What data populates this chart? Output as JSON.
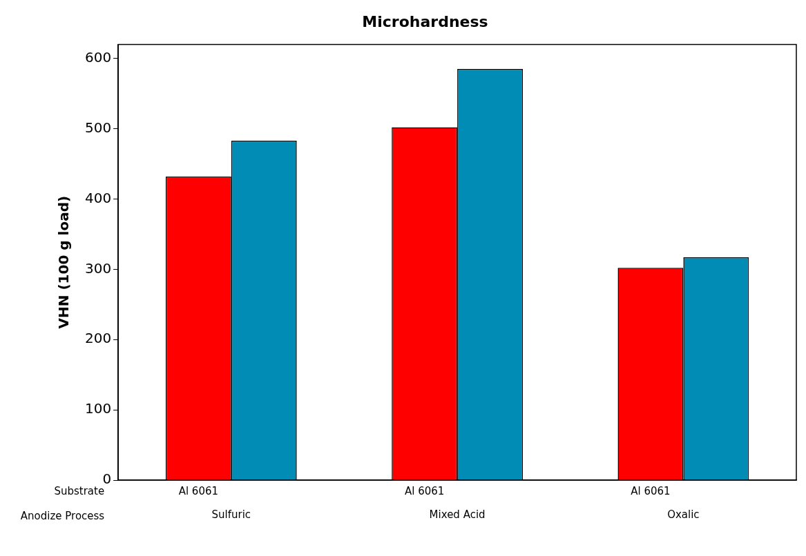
{
  "chart_data": {
    "type": "bar",
    "title": "Microhardness",
    "ylabel": "VHN (100 g load)",
    "categories": [
      "Sulfuric",
      "Mixed Acid",
      "Oxalic"
    ],
    "series": [
      {
        "name": "Al 6061",
        "color": "#ff0000",
        "values": [
          432,
          502,
          302
        ]
      },
      {
        "color": "#008cb4",
        "values": [
          483,
          585,
          317
        ]
      }
    ],
    "ylim": [
      0,
      620
    ],
    "yticks": [
      0,
      100,
      200,
      300,
      400,
      500,
      600
    ],
    "grid": false,
    "legend": false,
    "annotations": [
      "Substrate",
      "Anodize Process"
    ]
  }
}
